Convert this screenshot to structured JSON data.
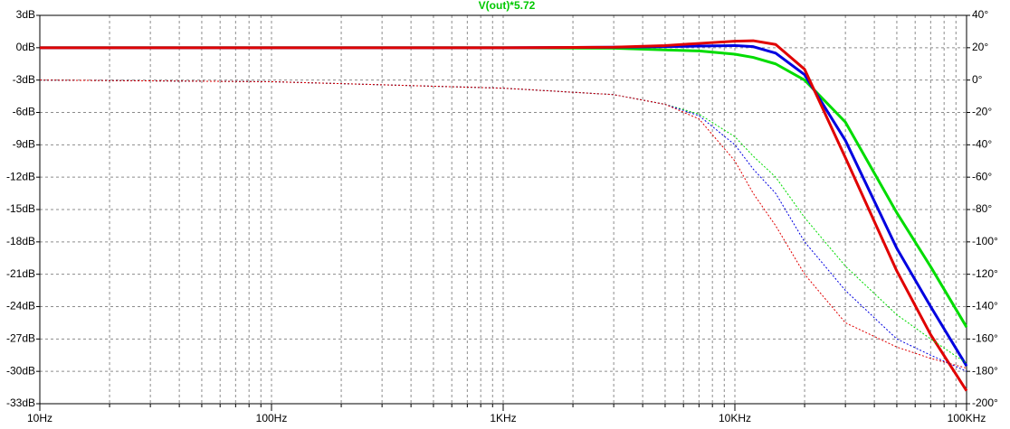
{
  "chart_data": {
    "type": "line",
    "title": "V(out)*5.72",
    "title_color": "#00c800",
    "x_scale": "log",
    "x": [
      10,
      100,
      1000,
      3000,
      5000,
      7000,
      10000,
      12000,
      15000,
      20000,
      30000,
      50000,
      70000,
      100000
    ],
    "xlim": [
      10,
      100000
    ],
    "xticks": [
      {
        "value": 10,
        "label": "10Hz"
      },
      {
        "value": 100,
        "label": "100Hz"
      },
      {
        "value": 1000,
        "label": "1KHz"
      },
      {
        "value": 10000,
        "label": "10KHz"
      },
      {
        "value": 100000,
        "label": "100KHz"
      }
    ],
    "ylim": [
      -33,
      3
    ],
    "yticks": [
      {
        "value": 3,
        "label": "3dB"
      },
      {
        "value": 0,
        "label": "0dB"
      },
      {
        "value": -3,
        "label": "-3dB"
      },
      {
        "value": -6,
        "label": "-6dB"
      },
      {
        "value": -9,
        "label": "-9dB"
      },
      {
        "value": -12,
        "label": "-12dB"
      },
      {
        "value": -15,
        "label": "-15dB"
      },
      {
        "value": -18,
        "label": "-18dB"
      },
      {
        "value": -21,
        "label": "-21dB"
      },
      {
        "value": -24,
        "label": "-24dB"
      },
      {
        "value": -27,
        "label": "-27dB"
      },
      {
        "value": -30,
        "label": "-30dB"
      },
      {
        "value": -33,
        "label": "-33dB"
      }
    ],
    "y2lim": [
      -200,
      40
    ],
    "y2ticks": [
      {
        "value": 40,
        "label": "40°"
      },
      {
        "value": 20,
        "label": "20°"
      },
      {
        "value": 0,
        "label": "0°"
      },
      {
        "value": -20,
        "label": "-20°"
      },
      {
        "value": -40,
        "label": "-40°"
      },
      {
        "value": -60,
        "label": "-60°"
      },
      {
        "value": -80,
        "label": "-80°"
      },
      {
        "value": -100,
        "label": "-100°"
      },
      {
        "value": -120,
        "label": "-120°"
      },
      {
        "value": -140,
        "label": "-140°"
      },
      {
        "value": -160,
        "label": "-160°"
      },
      {
        "value": -180,
        "label": "-180°"
      },
      {
        "value": -200,
        "label": "-200°"
      }
    ],
    "grid": true,
    "minor_grid": true,
    "series": [
      {
        "color": "#00dc00",
        "linestyle": "solid",
        "values": [
          0,
          0,
          0,
          -0.05,
          -0.2,
          -0.3,
          -0.6,
          -0.9,
          -1.5,
          -3,
          -6.9,
          -15.3,
          -20.3,
          -25.9
        ]
      },
      {
        "color": "#0000e0",
        "linestyle": "solid",
        "values": [
          0,
          0,
          0,
          0.05,
          0.1,
          0.15,
          0.2,
          0.1,
          -0.5,
          -2.5,
          -8.6,
          -18.6,
          -24,
          -29.5
        ]
      },
      {
        "color": "#e00000",
        "linestyle": "solid",
        "values": [
          0,
          0,
          0,
          0.05,
          0.2,
          0.4,
          0.6,
          0.65,
          0.3,
          -2,
          -10.2,
          -20.7,
          -26.6,
          -31.8
        ]
      },
      {
        "color": "#00dc00",
        "linestyle": "dotted",
        "axis": "y2",
        "values": [
          0,
          -1,
          -5,
          -9,
          -15,
          -21,
          -35,
          -47,
          -60,
          -85,
          -115,
          -145,
          -160,
          -175
        ]
      },
      {
        "color": "#0000e0",
        "linestyle": "dotted",
        "axis": "y2",
        "values": [
          0,
          -1,
          -5,
          -9,
          -15,
          -22,
          -40,
          -55,
          -70,
          -100,
          -130,
          -160,
          -170,
          -180
        ]
      },
      {
        "color": "#e00000",
        "linestyle": "dotted",
        "axis": "y2",
        "values": [
          0,
          -1,
          -5,
          -9,
          -15,
          -24,
          -50,
          -70,
          -90,
          -120,
          -150,
          -165,
          -172,
          -178
        ]
      }
    ]
  }
}
